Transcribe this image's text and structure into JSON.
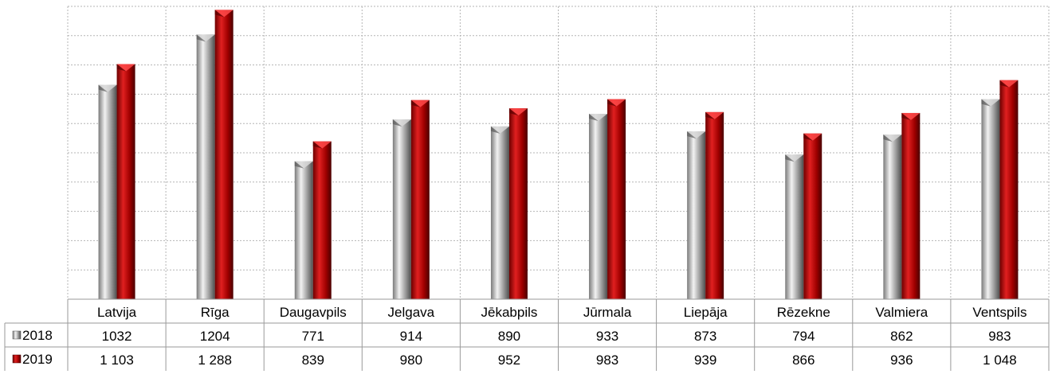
{
  "chart_data": {
    "type": "bar",
    "categories": [
      "Latvija",
      "Rīga",
      "Daugavpils",
      "Jelgava",
      "Jēkabpils",
      "Jūrmala",
      "Liepāja",
      "Rēzekne",
      "Valmiera",
      "Ventspils"
    ],
    "series": [
      {
        "name": "2018",
        "values": [
          1032,
          1204,
          771,
          914,
          890,
          933,
          873,
          794,
          862,
          983
        ],
        "labels": [
          "1032",
          "1204",
          "771",
          "914",
          "890",
          "933",
          "873",
          "794",
          "862",
          "983"
        ],
        "color": "#9a9a9a"
      },
      {
        "name": "2019",
        "values": [
          1103,
          1288,
          839,
          980,
          952,
          983,
          939,
          866,
          936,
          1048
        ],
        "labels": [
          "1 103",
          "1 288",
          "839",
          "980",
          "952",
          "983",
          "939",
          "866",
          "936",
          "1 048"
        ],
        "color": "#a80000"
      }
    ],
    "ylim": [
      300,
      1300
    ],
    "grid": true,
    "legend": "data-table"
  }
}
